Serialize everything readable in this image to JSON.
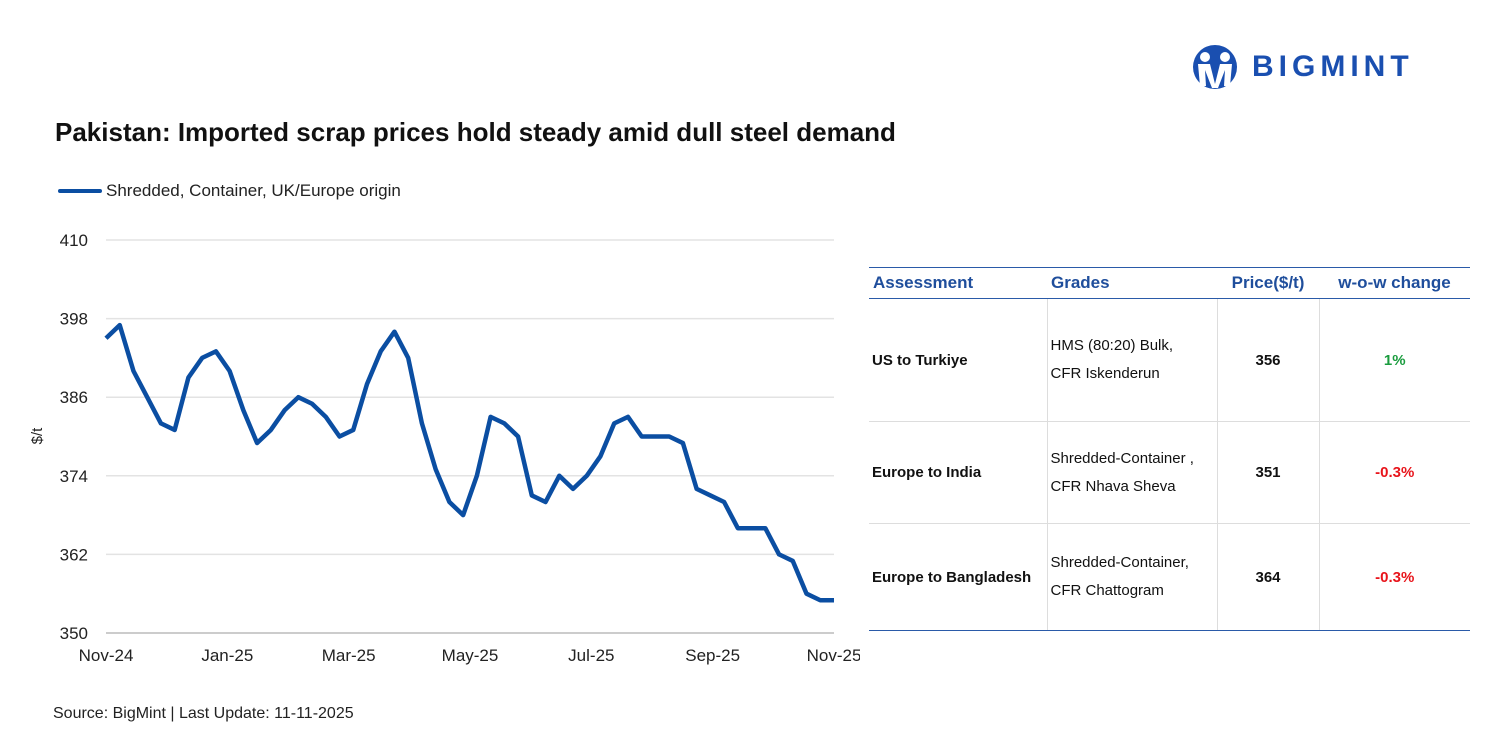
{
  "title": "Pakistan: Imported scrap prices hold steady amid dull steel demand",
  "logo": {
    "text": "BIGMINT",
    "color": "#1a4fb0"
  },
  "source": "Source: BigMint | Last Update: 11-11-2025",
  "chart_data": {
    "type": "line",
    "ylabel": "$/t",
    "ylim": [
      350,
      410
    ],
    "yticks": [
      "410",
      "398",
      "386",
      "374",
      "362",
      "350"
    ],
    "ytick_values": [
      410,
      398,
      386,
      374,
      362,
      350
    ],
    "xticks": [
      "Nov-24",
      "Jan-25",
      "Mar-25",
      "May-25",
      "Jul-25",
      "Sep-25",
      "Nov-25"
    ],
    "grid": true,
    "legend_position": "top-left",
    "series": [
      {
        "name": "Shredded, Container, UK/Europe origin",
        "color": "#0b4ea2",
        "values": [
          395,
          397,
          390,
          386,
          382,
          381,
          389,
          392,
          393,
          390,
          384,
          379,
          381,
          384,
          386,
          385,
          383,
          380,
          381,
          388,
          393,
          396,
          392,
          382,
          375,
          370,
          368,
          374,
          383,
          382,
          380,
          371,
          370,
          374,
          372,
          374,
          377,
          382,
          383,
          380,
          380,
          380,
          379,
          372,
          371,
          370,
          366,
          366,
          366,
          362,
          361,
          356,
          355,
          355
        ]
      }
    ]
  },
  "table": {
    "headers": [
      "Assessment",
      "Grades",
      "Price($/t)",
      "w-o-w change"
    ],
    "rows": [
      {
        "assessment": "US to Turkiye",
        "grade1": "HMS (80:20) Bulk,",
        "grade2": "CFR Iskenderun",
        "price": "356",
        "change": "1%",
        "color": "#1a9c3e"
      },
      {
        "assessment": "Europe to India",
        "grade1": "Shredded-Container ,",
        "grade2": "CFR Nhava Sheva",
        "price": "351",
        "change": "-0.3%",
        "color": "#e8141b"
      },
      {
        "assessment": "Europe to Bangladesh",
        "grade1": "Shredded-Container,",
        "grade2": "CFR Chattogram",
        "price": "364",
        "change": "-0.3%",
        "color": "#e8141b"
      }
    ]
  }
}
